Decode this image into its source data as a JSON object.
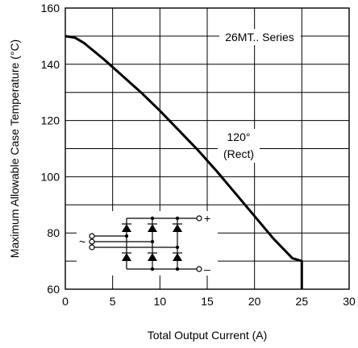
{
  "chart_data": {
    "type": "line",
    "xlabel": "Total Output Current (A)",
    "ylabel": "Maximum Allowable Case Temperature (°C)",
    "xlim": [
      0,
      30
    ],
    "ylim": [
      60,
      160
    ],
    "x_ticks": [
      "0",
      "5",
      "10",
      "15",
      "20",
      "25",
      "30"
    ],
    "y_ticks": [
      "60",
      "80",
      "100",
      "120",
      "140",
      "160"
    ],
    "grid": true,
    "series": [
      {
        "name": "26MT.. Series",
        "x": [
          0,
          1,
          2,
          4,
          6,
          8,
          10,
          12,
          14,
          16,
          18,
          20,
          22,
          24,
          25,
          25
        ],
        "y": [
          150,
          149.5,
          147.5,
          142,
          136,
          130,
          123.5,
          116.5,
          109.5,
          102,
          94,
          86,
          78,
          71,
          70,
          60
        ]
      }
    ],
    "annotations": {
      "series_label": "26MT.. Series",
      "condition_line1": "120°",
      "condition_line2": "(Rect)",
      "inset_plus": "+",
      "inset_minus": "–",
      "inset_ac": "~"
    }
  }
}
